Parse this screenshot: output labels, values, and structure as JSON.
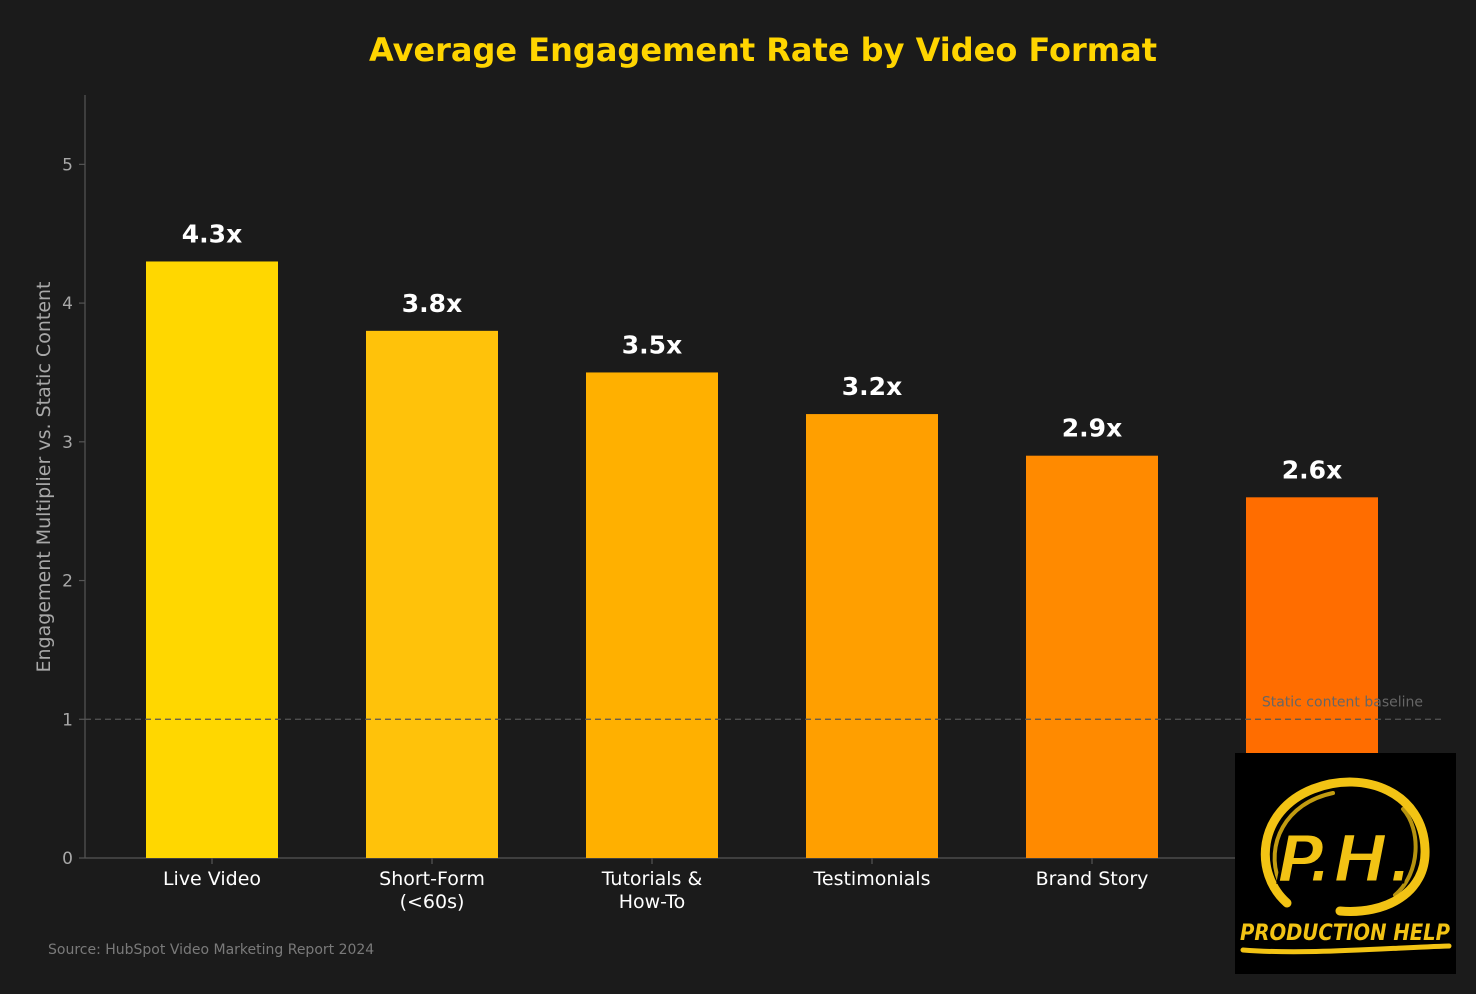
{
  "chart_data": {
    "type": "bar",
    "title": "Average Engagement Rate by Video Format",
    "xlabel": "",
    "ylabel": "Engagement Multiplier vs. Static Content",
    "ylim": [
      0,
      5.5
    ],
    "yticks": [
      0,
      1,
      2,
      3,
      4,
      5
    ],
    "categories": [
      [
        "Live Video"
      ],
      [
        "Short-Form",
        "(<60s)"
      ],
      [
        "Tutorials &",
        "How-To"
      ],
      [
        "Testimonials"
      ],
      [
        "Brand Story"
      ],
      [
        ""
      ]
    ],
    "values": [
      4.3,
      3.8,
      3.5,
      3.2,
      2.9,
      2.6
    ],
    "value_labels": [
      "4.3x",
      "3.8x",
      "3.5x",
      "3.2x",
      "2.9x",
      "2.6x"
    ],
    "bar_colors": [
      "#FFD700",
      "#FFC20A",
      "#FFB000",
      "#FF9F00",
      "#FF8A00",
      "#FF6D00"
    ],
    "reference_line": {
      "value": 1,
      "label": "Static content baseline",
      "style": "dashed"
    },
    "grid": false,
    "source": "Source: HubSpot Video Marketing Report 2024"
  },
  "colors": {
    "background": "#1b1b1b",
    "title": "#FFD500",
    "axis": "#555555",
    "tick_text": "#a8a8a8",
    "label_text": "#ffffff",
    "baseline": "#555555",
    "logo_gold": "#F2C314"
  },
  "logo": {
    "initials": "P.H.",
    "wordmark": "PRODUCTION HELP"
  }
}
